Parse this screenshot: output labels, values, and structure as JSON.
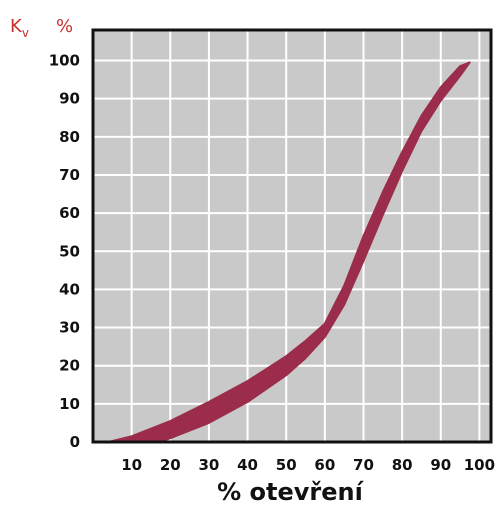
{
  "colors": {
    "band": "#9b2c4c",
    "grid": "#ffffff",
    "plot_bg": "#c9c9c9",
    "frame": "#111111",
    "label_red": "#c8302e"
  },
  "labels": {
    "kv_main": "K",
    "kv_sub": "v",
    "percent": "%"
  },
  "chart_data": {
    "type": "area",
    "xlabel": "% otevření",
    "ylabel": "K v %",
    "xlim": [
      0,
      103
    ],
    "ylim": [
      0,
      108
    ],
    "x_ticks": [
      "10",
      "20",
      "30",
      "40",
      "50",
      "60",
      "70",
      "80",
      "90",
      "100"
    ],
    "y_ticks": [
      "0",
      "10",
      "20",
      "30",
      "40",
      "50",
      "60",
      "70",
      "80",
      "90",
      "100"
    ],
    "grid": true,
    "series": [
      {
        "upper": [
          [
            4,
            0
          ],
          [
            10,
            1.5
          ],
          [
            20,
            5.5
          ],
          [
            30,
            10.5
          ],
          [
            40,
            16
          ],
          [
            50,
            22.5
          ],
          [
            55,
            26.5
          ],
          [
            60,
            31
          ],
          [
            65,
            41
          ],
          [
            70,
            54
          ],
          [
            75,
            65.5
          ],
          [
            80,
            76
          ],
          [
            85,
            85.5
          ],
          [
            90,
            93
          ],
          [
            95,
            98.5
          ],
          [
            97.5,
            99.5
          ]
        ],
        "lower": [
          [
            17,
            0
          ],
          [
            20,
            1
          ],
          [
            30,
            5
          ],
          [
            40,
            10.5
          ],
          [
            50,
            17.5
          ],
          [
            55,
            22
          ],
          [
            60,
            27.5
          ],
          [
            65,
            36
          ],
          [
            70,
            47.5
          ],
          [
            75,
            59.5
          ],
          [
            80,
            71
          ],
          [
            85,
            81.5
          ],
          [
            90,
            89.5
          ],
          [
            95,
            96
          ],
          [
            97.5,
            99.5
          ]
        ]
      }
    ]
  }
}
